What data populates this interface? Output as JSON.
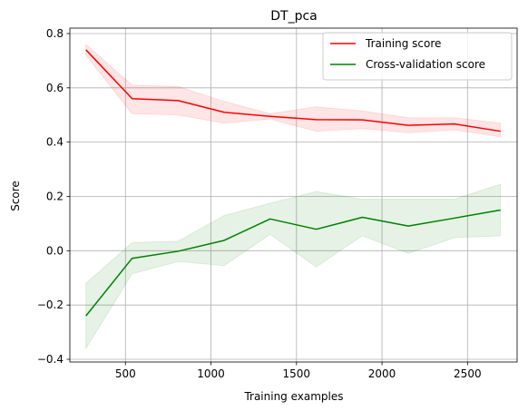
{
  "chart_data": {
    "type": "line",
    "title": "DT_pca",
    "xlabel": "Training examples",
    "ylabel": "Score",
    "xlim": [
      175,
      2790
    ],
    "ylim": [
      -0.41,
      0.82
    ],
    "xticks": [
      500,
      1000,
      1500,
      2000,
      2500
    ],
    "yticks": [
      -0.4,
      -0.2,
      0.0,
      0.2,
      0.4,
      0.6,
      0.8
    ],
    "xtick_labels": [
      "500",
      "1000",
      "1500",
      "2000",
      "2500"
    ],
    "ytick_labels": [
      "−0.4",
      "−0.2",
      "0.0",
      "0.2",
      "0.4",
      "0.6",
      "0.8"
    ],
    "grid": true,
    "legend_position": "upper right",
    "x": [
      269,
      539,
      808,
      1077,
      1346,
      1616,
      1885,
      2154,
      2423,
      2693
    ],
    "series": [
      {
        "name": "Training score",
        "color": "#ff0000",
        "fill_color": "#ff0000",
        "values": [
          0.74,
          0.56,
          0.553,
          0.51,
          0.495,
          0.483,
          0.482,
          0.462,
          0.467,
          0.44
        ],
        "band_upper": [
          0.76,
          0.61,
          0.605,
          0.55,
          0.505,
          0.53,
          0.515,
          0.49,
          0.49,
          0.47
        ],
        "band_lower": [
          0.72,
          0.505,
          0.5,
          0.47,
          0.485,
          0.44,
          0.45,
          0.435,
          0.445,
          0.42
        ]
      },
      {
        "name": "Cross-validation score",
        "color": "#008000",
        "fill_color": "#008000",
        "values": [
          -0.24,
          -0.028,
          -0.002,
          0.038,
          0.117,
          0.079,
          0.123,
          0.091,
          0.12,
          0.15
        ],
        "band_upper": [
          -0.12,
          0.03,
          0.035,
          0.13,
          0.175,
          0.218,
          0.19,
          0.19,
          0.19,
          0.245
        ],
        "band_lower": [
          -0.36,
          -0.085,
          -0.04,
          -0.055,
          0.06,
          -0.06,
          0.055,
          -0.01,
          0.048,
          0.055
        ]
      }
    ]
  }
}
